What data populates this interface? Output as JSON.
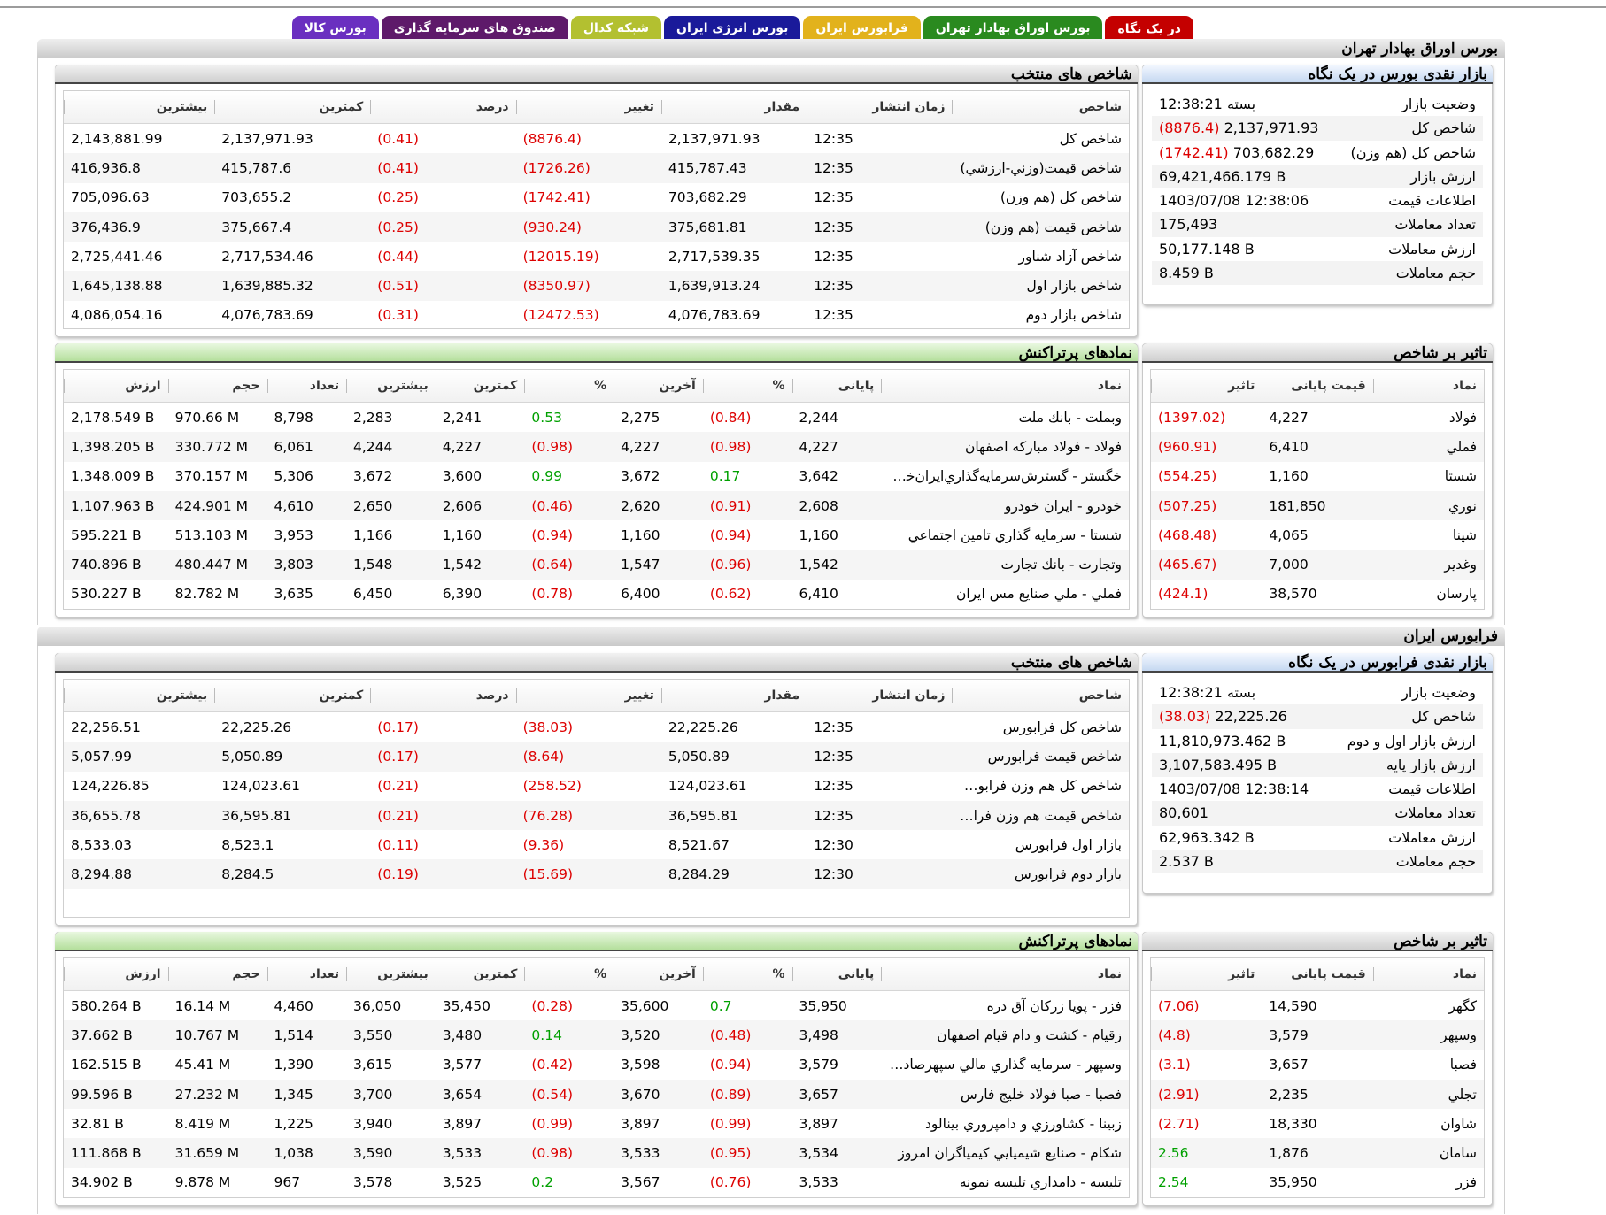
{
  "tabs": [
    {
      "label": "در یک نگاه",
      "color": "#c40000",
      "active": true
    },
    {
      "label": "بورس اوراق بهادار تهران",
      "color": "#2a8a1f"
    },
    {
      "label": "فرابورس ایران",
      "color": "#e2b21c"
    },
    {
      "label": "بورس انرژی ایران",
      "color": "#1a1a9a"
    },
    {
      "label": "شبکه کدال",
      "color": "#b3c030"
    },
    {
      "label": "صندوق های سرمایه گذاری",
      "color": "#5e1a6a"
    },
    {
      "label": "بورس کالا",
      "color": "#6a2fc0"
    }
  ],
  "tse": {
    "title": "بورس اوراق بهادار تهران",
    "glance": {
      "title": "بازار نقدی بورس در یک نگاه",
      "rows": [
        {
          "label": "وضعیت بازار",
          "value": "بسته 12:38:21"
        },
        {
          "label": "شاخص کل",
          "value": "2,137,971.93",
          "change": "(8876.4)"
        },
        {
          "label": "شاخص کل (هم وزن)",
          "value": "703,682.29",
          "change": "(1742.41)"
        },
        {
          "label": "ارزش بازار",
          "value": "69,421,466.179 B"
        },
        {
          "label": "اطلاعات قیمت",
          "value": "1403/07/08 12:38:06"
        },
        {
          "label": "تعداد معاملات",
          "value": "175,493"
        },
        {
          "label": "ارزش معاملات",
          "value": "50,177.148 B"
        },
        {
          "label": "حجم معاملات",
          "value": "8.459 B"
        }
      ]
    },
    "indices": {
      "title": "شاخص های منتخب",
      "headers": [
        "شاخص",
        "زمان انتشار",
        "مقدار",
        "تغییر",
        "درصد",
        "کمترین",
        "بیشترین"
      ],
      "rows": [
        [
          "شاخص کل",
          "12:35",
          "2,137,971.93",
          "(8876.4)",
          "(0.41)",
          "2,137,971.93",
          "2,143,881.99"
        ],
        [
          "شاخص قيمت(وزني-ارزشي)",
          "12:35",
          "415,787.43",
          "(1726.26)",
          "(0.41)",
          "415,787.6",
          "416,936.8"
        ],
        [
          "شاخص کل (هم وزن)",
          "12:35",
          "703,682.29",
          "(1742.41)",
          "(0.25)",
          "703,655.2",
          "705,096.63"
        ],
        [
          "شاخص قيمت (هم وزن)",
          "12:35",
          "375,681.81",
          "(930.24)",
          "(0.25)",
          "375,667.4",
          "376,436.9"
        ],
        [
          "شاخص آزاد شناور",
          "12:35",
          "2,717,539.35",
          "(12015.19)",
          "(0.44)",
          "2,717,534.46",
          "2,725,441.46"
        ],
        [
          "شاخص بازار اول",
          "12:35",
          "1,639,913.24",
          "(8350.97)",
          "(0.51)",
          "1,639,885.32",
          "1,645,138.88"
        ],
        [
          "شاخص بازار دوم",
          "12:35",
          "4,076,783.69",
          "(12472.53)",
          "(0.31)",
          "4,076,783.69",
          "4,086,054.16"
        ]
      ]
    },
    "impact": {
      "title": "تاثیر بر شاخص",
      "headers": [
        "نماد",
        "قیمت پایانی",
        "تاثیر"
      ],
      "rows": [
        [
          "فولاد",
          "4,227",
          "(1397.02)"
        ],
        [
          "فملي",
          "6,410",
          "(960.91)"
        ],
        [
          "شستا",
          "1,160",
          "(554.25)"
        ],
        [
          "نوري",
          "181,850",
          "(507.25)"
        ],
        [
          "شپنا",
          "4,065",
          "(468.48)"
        ],
        [
          "وغدير",
          "7,000",
          "(465.67)"
        ],
        [
          "پارسان",
          "38,570",
          "(424.1)"
        ]
      ]
    },
    "active": {
      "title": "نمادهای پرتراکنش",
      "headers": [
        "نماد",
        "پایانی",
        "%",
        "آخرین",
        "%",
        "کمترین",
        "بیشترین",
        "تعداد",
        "حجم",
        "ارزش"
      ],
      "rows": [
        [
          "وبملت - بانك ملت",
          "2,244",
          "(0.84)",
          "2,275",
          "0.53",
          "2,241",
          "2,283",
          "8,798",
          "970.66 M",
          "2,178.549 B"
        ],
        [
          "فولاد - فولاد مباركه اصفهان",
          "4,227",
          "(0.98)",
          "4,227",
          "(0.98)",
          "4,227",
          "4,244",
          "6,061",
          "330.772 M",
          "1,398.205 B"
        ],
        [
          "خگستر - گسترش‌سرمايه‌گذاري‌ايران‌خودرو",
          "3,642",
          "0.17",
          "3,672",
          "0.99",
          "3,600",
          "3,672",
          "5,306",
          "370.157 M",
          "1,348.009 B"
        ],
        [
          "خودرو - ايران‌ خودرو",
          "2,608",
          "(0.91)",
          "2,620",
          "(0.46)",
          "2,606",
          "2,650",
          "4,610",
          "424.901 M",
          "1,107.963 B"
        ],
        [
          "شستا - سرمايه گذاري تامين اجتماعي",
          "1,160",
          "(0.94)",
          "1,160",
          "(0.94)",
          "1,160",
          "1,166",
          "3,953",
          "513.103 M",
          "595.221 B"
        ],
        [
          "وتجارت - بانك تجارت",
          "1,542",
          "(0.96)",
          "1,547",
          "(0.64)",
          "1,542",
          "1,548",
          "3,803",
          "480.447 M",
          "740.896 B"
        ],
        [
          "فملي - ملي‌ صنايع‌ مس‌ ايران‌",
          "6,410",
          "(0.62)",
          "6,400",
          "(0.78)",
          "6,390",
          "6,450",
          "3,635",
          "82.782 M",
          "530.227 B"
        ]
      ]
    }
  },
  "ifb": {
    "title": "فرابورس ایران",
    "glance": {
      "title": "بازار نقدی فرابورس در یک نگاه",
      "rows": [
        {
          "label": "وضعیت بازار",
          "value": "بسته 12:38:21"
        },
        {
          "label": "شاخص کل",
          "value": "22,225.26",
          "change": "(38.03)"
        },
        {
          "label": "ارزش بازار اول و دوم",
          "value": "11,810,973.462 B"
        },
        {
          "label": "ارزش بازار پایه",
          "value": "3,107,583.495 B"
        },
        {
          "label": "اطلاعات قیمت",
          "value": "1403/07/08 12:38:14"
        },
        {
          "label": "تعداد معاملات",
          "value": "80,601"
        },
        {
          "label": "ارزش معاملات",
          "value": "62,963.342 B"
        },
        {
          "label": "حجم معاملات",
          "value": "2.537 B"
        }
      ]
    },
    "indices": {
      "title": "شاخص های منتخب",
      "headers": [
        "شاخص",
        "زمان انتشار",
        "مقدار",
        "تغییر",
        "درصد",
        "کمترین",
        "بیشترین"
      ],
      "rows": [
        [
          "شاخص کل فرابورس",
          "12:35",
          "22,225.26",
          "(38.03)",
          "(0.17)",
          "22,225.26",
          "22,256.51"
        ],
        [
          "شاخص قیمت فرابورس",
          "12:35",
          "5,050.89",
          "(8.64)",
          "(0.17)",
          "5,050.89",
          "5,057.99"
        ],
        [
          "شاخص کل هم وزن فرابورس",
          "12:35",
          "124,023.61",
          "(258.52)",
          "(0.21)",
          "124,023.61",
          "124,226.85"
        ],
        [
          "شاخص قیمت هم وزن فرابو...",
          "12:35",
          "36,595.81",
          "(76.28)",
          "(0.21)",
          "36,595.81",
          "36,655.78"
        ],
        [
          "بازار اول فرابورس",
          "12:30",
          "8,521.67",
          "(9.36)",
          "(0.11)",
          "8,523.1",
          "8,533.03"
        ],
        [
          "بازار دوم فرابورس",
          "12:30",
          "8,284.29",
          "(15.69)",
          "(0.19)",
          "8,284.5",
          "8,294.88"
        ]
      ]
    },
    "impact": {
      "title": "تاثیر بر شاخص",
      "headers": [
        "نماد",
        "قیمت پایانی",
        "تاثیر"
      ],
      "rows": [
        [
          "كگهر",
          "14,590",
          "(7.06)"
        ],
        [
          "وسپهر",
          "3,579",
          "(4.8)"
        ],
        [
          "فصبا",
          "3,657",
          "(3.1)"
        ],
        [
          "تجلي",
          "2,235",
          "(2.91)"
        ],
        [
          "شاوان",
          "18,330",
          "(2.71)"
        ],
        [
          "سامان",
          "1,876",
          "2.56"
        ],
        [
          "فزر",
          "35,950",
          "2.54"
        ]
      ]
    },
    "active": {
      "title": "نمادهای پرتراکنش",
      "headers": [
        "نماد",
        "پایانی",
        "%",
        "آخرین",
        "%",
        "کمترین",
        "بیشترین",
        "تعداد",
        "حجم",
        "ارزش"
      ],
      "rows": [
        [
          "فزر - پويا زركان آق دره",
          "35,950",
          "0.7",
          "35,600",
          "(0.28)",
          "35,450",
          "36,050",
          "4,460",
          "16.14 M",
          "580.264 B"
        ],
        [
          "زقيام - كشت و دام قيام اصفهان",
          "3,498",
          "(0.48)",
          "3,520",
          "0.14",
          "3,480",
          "3,550",
          "1,514",
          "10.767 M",
          "37.662 B"
        ],
        [
          "وسپهر - سرمايه گذاري مالي سپهرصادر...",
          "3,579",
          "(0.94)",
          "3,598",
          "(0.42)",
          "3,577",
          "3,615",
          "1,390",
          "45.41 M",
          "162.515 B"
        ],
        [
          "فصبا - صبا فولاد خليج فارس",
          "3,657",
          "(0.89)",
          "3,670",
          "(0.54)",
          "3,654",
          "3,700",
          "1,345",
          "27.232 M",
          "99.596 B"
        ],
        [
          "زبينا - كشاورزي و دامپروري بينالود",
          "3,897",
          "(0.99)",
          "3,897",
          "(0.99)",
          "3,897",
          "3,940",
          "1,225",
          "8.419 M",
          "32.81 B"
        ],
        [
          "شكام - صنايع شيميايي كيمياگران امروز",
          "3,534",
          "(0.95)",
          "3,533",
          "(0.98)",
          "3,533",
          "3,590",
          "1,038",
          "31.659 M",
          "111.868 B"
        ],
        [
          "تليسه - دامداري تليسه نمونه",
          "3,533",
          "(0.76)",
          "3,567",
          "0.2",
          "3,525",
          "3,578",
          "967",
          "9.878 M",
          "34.902 B"
        ]
      ]
    }
  }
}
